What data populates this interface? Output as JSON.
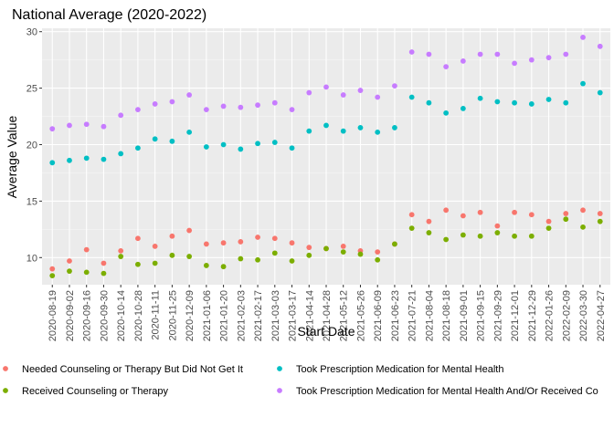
{
  "chart_data": {
    "type": "scatter",
    "title": "National Average (2020-2022)",
    "xlabel": "Start Date",
    "ylabel": "Average Value",
    "ylim": [
      7.6,
      30.3
    ],
    "yticks": [
      10,
      15,
      20,
      25,
      30
    ],
    "grid": true,
    "legend_position": "bottom",
    "x": [
      "2020-08-19",
      "2020-09-02",
      "2020-09-16",
      "2020-09-30",
      "2020-10-14",
      "2020-10-28",
      "2020-11-11",
      "2020-11-25",
      "2020-12-09",
      "2021-01-06",
      "2021-01-20",
      "2021-02-03",
      "2021-02-17",
      "2021-03-03",
      "2021-03-17",
      "2021-04-14",
      "2021-04-28",
      "2021-05-12",
      "2021-05-26",
      "2021-06-09",
      "2021-06-23",
      "2021-07-21",
      "2021-08-04",
      "2021-08-18",
      "2021-09-01",
      "2021-09-15",
      "2021-09-29",
      "2021-12-01",
      "2021-12-29",
      "2022-01-26",
      "2022-02-09",
      "2022-03-30",
      "2022-04-27"
    ],
    "series": [
      {
        "name": "Needed Counseling or Therapy But Did Not Get It",
        "color": "#F8766D",
        "values": [
          9.0,
          9.7,
          10.7,
          9.5,
          10.6,
          11.7,
          11.0,
          11.9,
          12.4,
          11.2,
          11.3,
          11.4,
          11.8,
          11.7,
          11.3,
          10.9,
          10.8,
          11.0,
          10.6,
          10.5,
          11.2,
          13.8,
          13.2,
          14.2,
          13.7,
          14.0,
          12.8,
          14.0,
          13.8,
          13.2,
          13.9,
          14.2,
          13.9
        ]
      },
      {
        "name": "Received Counseling or Therapy",
        "color": "#7CAE00",
        "values": [
          8.4,
          8.8,
          8.7,
          8.6,
          10.1,
          9.4,
          9.5,
          10.2,
          10.1,
          9.3,
          9.2,
          9.9,
          9.8,
          10.4,
          9.7,
          10.2,
          10.8,
          10.5,
          10.3,
          9.8,
          11.2,
          12.6,
          12.2,
          11.6,
          12.0,
          11.9,
          12.2,
          11.9,
          11.9,
          12.6,
          13.4,
          12.7,
          13.2
        ]
      },
      {
        "name": "Took Prescription Medication for Mental Health",
        "color": "#00BFC4",
        "values": [
          18.4,
          18.6,
          18.8,
          18.7,
          19.2,
          19.7,
          20.5,
          20.3,
          21.1,
          19.8,
          20.0,
          19.6,
          20.1,
          20.2,
          19.7,
          21.2,
          21.7,
          21.2,
          21.5,
          21.1,
          21.5,
          24.2,
          23.7,
          22.8,
          23.2,
          24.1,
          23.8,
          23.7,
          23.6,
          24.0,
          23.7,
          25.4,
          24.6
        ]
      },
      {
        "name": "Took Prescription Medication for Mental Health And/Or Received Co",
        "color": "#C77CFF",
        "values": [
          21.4,
          21.7,
          21.8,
          21.6,
          22.6,
          23.1,
          23.6,
          23.8,
          24.4,
          23.1,
          23.4,
          23.3,
          23.5,
          23.7,
          23.1,
          24.6,
          25.1,
          24.4,
          24.8,
          24.2,
          25.2,
          28.2,
          28.0,
          26.9,
          27.4,
          28.0,
          28.0,
          27.2,
          27.5,
          27.7,
          28.0,
          29.5,
          28.7
        ]
      }
    ]
  }
}
